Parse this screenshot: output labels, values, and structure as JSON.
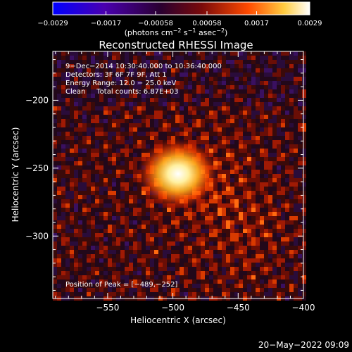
{
  "chart_data": {
    "type": "heatmap",
    "title": "Reconstructed RHESSI Image",
    "xlabel": "Heliocentric X (arcsec)",
    "ylabel": "Heliocentric Y (arcsec)",
    "xlim": [
      -592,
      -400
    ],
    "ylim": [
      -346,
      -164
    ],
    "x_ticks": [
      -550,
      -500,
      -450,
      -400
    ],
    "x_tick_labels": [
      "−550",
      "−500",
      "−450",
      "−400"
    ],
    "y_ticks": [
      -200,
      -250,
      -300
    ],
    "y_tick_labels": [
      "−200",
      "−250",
      "−300"
    ],
    "info_lines": [
      "9−Dec−2014 10:30:40.000 to 10:36:40.000",
      "Detectors: 3F 6F 7F 9F, Att 1",
      "Energy Range: 12.0 − 25.0 keV",
      "Clean     Total counts: 6.87E+03"
    ],
    "peak_label": "Position of Peak = [−489,−252]",
    "peak": [
      -489,
      -252
    ],
    "colorbar": {
      "range": [
        -0.0029,
        0.0029
      ],
      "ticks": [
        -0.0029,
        -0.0017,
        -0.00058,
        0.00058,
        0.0017,
        0.0029
      ],
      "tick_labels": [
        "−0.0029",
        "−0.0017",
        "−0.00058",
        "0.00058",
        "0.0017",
        "0.0029"
      ],
      "units_main": "(photons cm",
      "units_exp1": "−2",
      "units_mid": " s",
      "units_exp2": "−1",
      "units_end": " asec",
      "units_exp3": "−2",
      "units_close": ")",
      "stops": [
        "#0000ff",
        "#4a00b0",
        "#2a0030",
        "#7a0a0a",
        "#ff4a00",
        "#ffcc40",
        "#ffffff"
      ]
    }
  },
  "footer": {
    "timestamp": "20−May−2022 09:09"
  }
}
